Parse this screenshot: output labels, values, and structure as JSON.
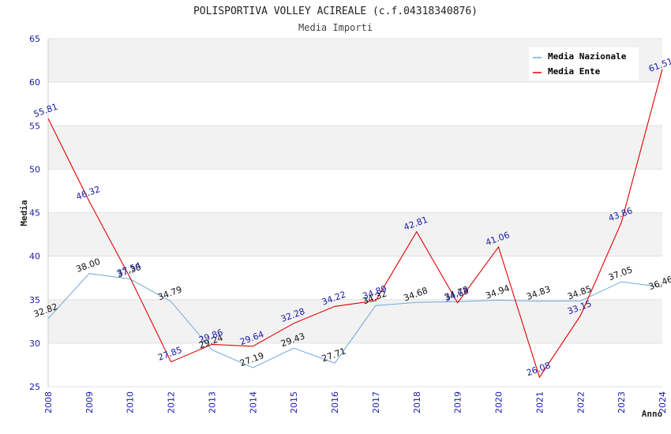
{
  "chart_data": {
    "type": "line",
    "title": "POLISPORTIVA VOLLEY ACIREALE (c.f.04318340876)",
    "subtitle": "Media Importi",
    "xlabel": "Anno",
    "ylabel": "Media",
    "categories": [
      "2008",
      "2009",
      "2010",
      "2012",
      "2013",
      "2014",
      "2015",
      "2016",
      "2017",
      "2018",
      "2019",
      "2020",
      "2021",
      "2022",
      "2023",
      "2024"
    ],
    "ylim": [
      25,
      65
    ],
    "yticks": [
      25,
      30,
      35,
      40,
      45,
      50,
      55,
      60,
      65
    ],
    "legend_position": "top-right",
    "series": [
      {
        "name": "Media Nazionale",
        "color": "#6fa8dc",
        "values": [
          32.82,
          38.0,
          37.38,
          34.79,
          29.24,
          27.19,
          29.43,
          27.71,
          34.32,
          34.68,
          34.78,
          34.94,
          34.83,
          34.85,
          37.05,
          36.46
        ],
        "labels": [
          "32.82",
          "38.00",
          "37.38",
          "34.79",
          "29.24",
          "27.19",
          "29.43",
          "27.71",
          "34.32",
          "34.68",
          "34.78",
          "34.94",
          "34.83",
          "34.85",
          "37.05",
          "36.46"
        ]
      },
      {
        "name": "Media Ente",
        "color": "#e00000",
        "values": [
          55.81,
          46.32,
          37.54,
          27.85,
          29.86,
          29.64,
          32.28,
          34.22,
          34.89,
          42.81,
          34.63,
          41.06,
          26.08,
          33.15,
          43.86,
          61.51
        ],
        "labels": [
          "55.81",
          "46.32",
          "37.54",
          "27.85",
          "29.86",
          "29.64",
          "32.28",
          "34.22",
          "34.89",
          "42.81",
          "34.63",
          "41.06",
          "26.08",
          "33.15",
          "43.86",
          "61.51"
        ]
      }
    ]
  }
}
